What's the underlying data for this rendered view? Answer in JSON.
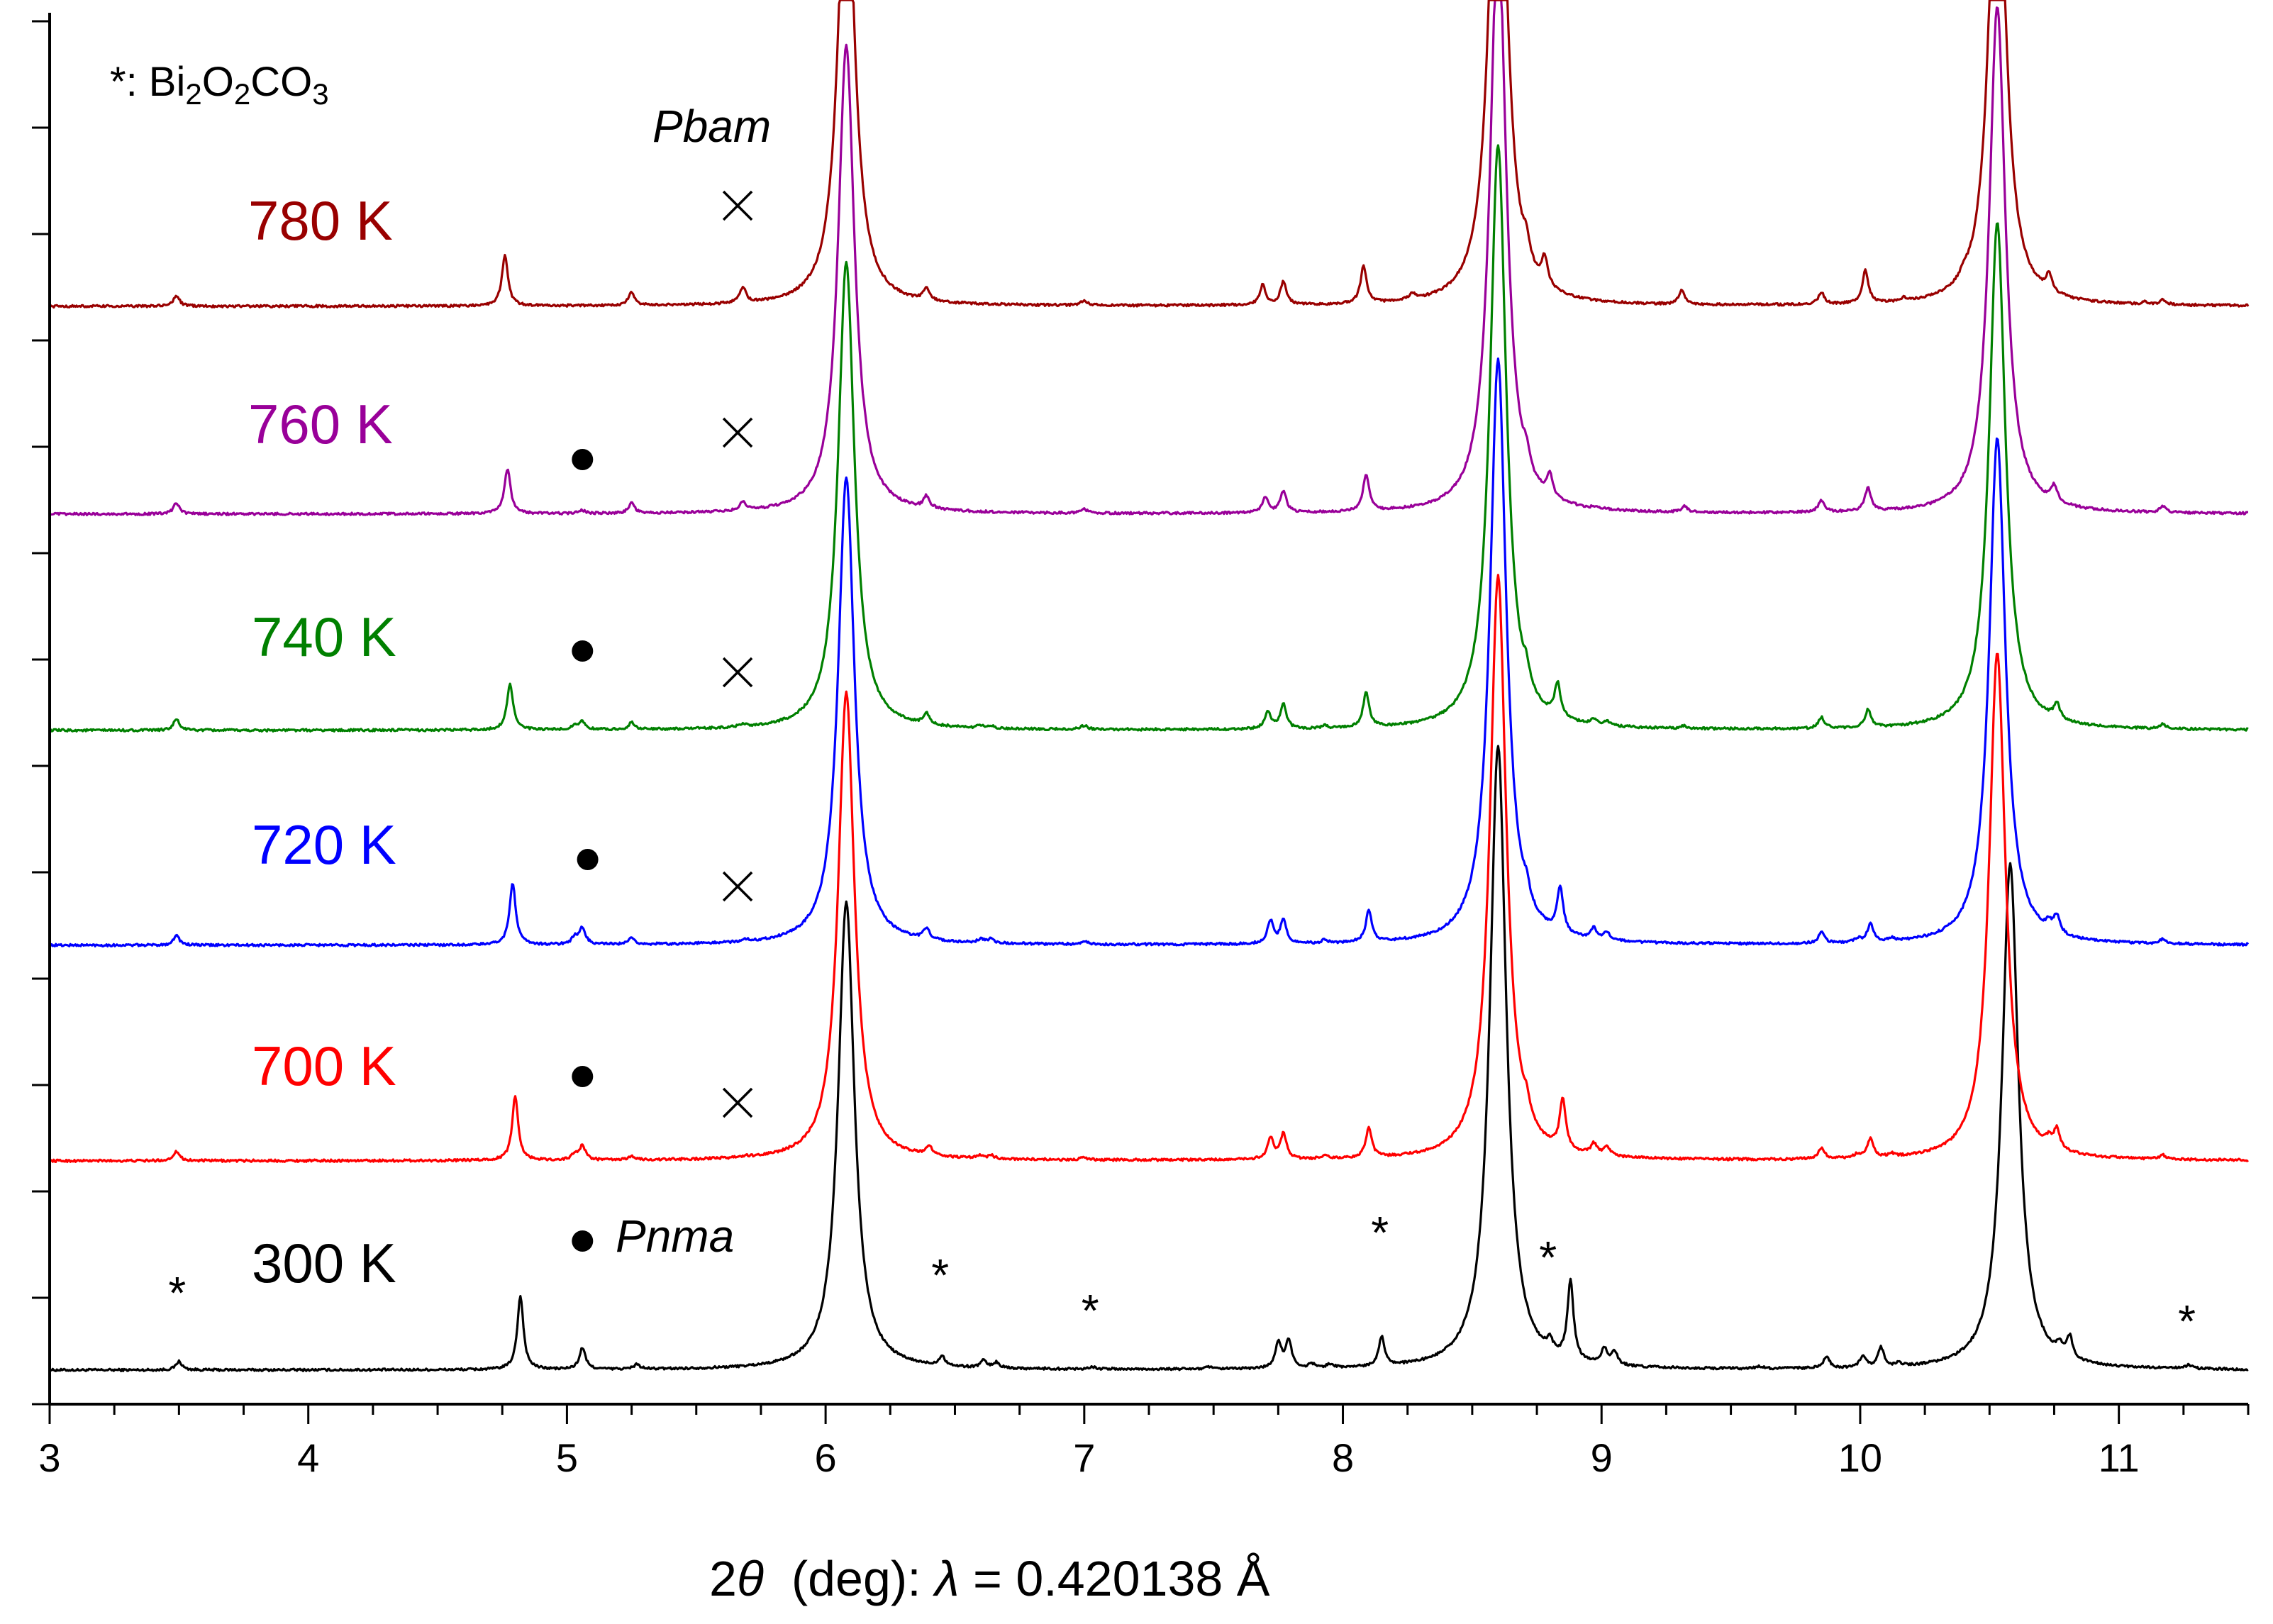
{
  "chart_data": {
    "type": "line",
    "xlabel": "(deg): ",
    "xlabel_parts": {
      "theta_prefix": "2",
      "theta_symbol": "θ",
      "deg_text": "  (deg): ",
      "lambda_symbol": "λ",
      "lambda_value": " = 0.420138 Å"
    },
    "ylabel": "",
    "xlim": [
      3,
      11.5
    ],
    "x_ticks": [
      "3",
      "4",
      "5",
      "6",
      "7",
      "8",
      "9",
      "10",
      "11"
    ],
    "legend": {
      "marker": "*",
      "text_prefix": ": Bi",
      "sub1": "2",
      "mid1": "O",
      "sub2": "2",
      "mid2": "CO",
      "sub3": "3"
    },
    "phase_labels": {
      "pbam": "Pbam",
      "pnma": "Pnma"
    },
    "series": [
      {
        "name": "300 K",
        "color": "#000000",
        "peaks": [
          [
            3.5,
            0.22
          ],
          [
            4.82,
            1.9
          ],
          [
            5.06,
            0.55
          ],
          [
            5.27,
            0.12
          ],
          [
            6.08,
            12
          ],
          [
            6.45,
            0.25
          ],
          [
            6.61,
            0.18
          ],
          [
            6.66,
            0.14
          ],
          [
            7.03,
            0.06
          ],
          [
            7.48,
            0.05
          ],
          [
            7.75,
            0.65
          ],
          [
            7.79,
            0.72
          ],
          [
            7.88,
            0.1
          ],
          [
            7.95,
            0.1
          ],
          [
            8.15,
            0.75
          ],
          [
            8.6,
            16
          ],
          [
            8.8,
            0.28
          ],
          [
            8.88,
            2.0
          ],
          [
            9.01,
            0.4
          ],
          [
            9.05,
            0.35
          ],
          [
            9.61,
            0.06
          ],
          [
            9.87,
            0.3
          ],
          [
            10.01,
            0.28
          ],
          [
            10.08,
            0.5
          ],
          [
            10.15,
            0.08
          ],
          [
            10.58,
            13
          ],
          [
            10.77,
            0.25
          ],
          [
            10.81,
            0.55
          ],
          [
            11.27,
            0.1
          ]
        ]
      },
      {
        "name": "700 K",
        "color": "#ff0000",
        "peaks": [
          [
            3.49,
            0.25
          ],
          [
            4.8,
            1.65
          ],
          [
            5.03,
            0.15
          ],
          [
            5.06,
            0.36
          ],
          [
            5.25,
            0.1
          ],
          [
            5.69,
            0.03
          ],
          [
            6.08,
            12
          ],
          [
            6.4,
            0.25
          ],
          [
            6.6,
            0.08
          ],
          [
            6.64,
            0.08
          ],
          [
            7.0,
            0.06
          ],
          [
            7.72,
            0.55
          ],
          [
            7.77,
            0.65
          ],
          [
            7.93,
            0.08
          ],
          [
            8.1,
            0.75
          ],
          [
            8.6,
            15
          ],
          [
            8.71,
            0.4
          ],
          [
            8.85,
            1.3
          ],
          [
            8.97,
            0.28
          ],
          [
            9.02,
            0.25
          ],
          [
            9.85,
            0.28
          ],
          [
            9.99,
            0.1
          ],
          [
            10.04,
            0.5
          ],
          [
            10.12,
            0.08
          ],
          [
            10.53,
            13
          ],
          [
            10.73,
            0.2
          ],
          [
            10.76,
            0.5
          ],
          [
            11.17,
            0.1
          ]
        ]
      },
      {
        "name": "720 K",
        "color": "#0000ff",
        "peaks": [
          [
            3.49,
            0.25
          ],
          [
            4.79,
            1.6
          ],
          [
            5.03,
            0.18
          ],
          [
            5.06,
            0.42
          ],
          [
            5.25,
            0.15
          ],
          [
            5.69,
            0.05
          ],
          [
            6.08,
            12
          ],
          [
            6.39,
            0.28
          ],
          [
            6.6,
            0.1
          ],
          [
            6.64,
            0.1
          ],
          [
            7.0,
            0.08
          ],
          [
            7.72,
            0.58
          ],
          [
            7.77,
            0.62
          ],
          [
            7.93,
            0.08
          ],
          [
            8.1,
            0.8
          ],
          [
            8.6,
            15
          ],
          [
            8.71,
            0.35
          ],
          [
            8.84,
            1.15
          ],
          [
            8.97,
            0.28
          ],
          [
            9.02,
            0.22
          ],
          [
            9.85,
            0.28
          ],
          [
            9.99,
            0.1
          ],
          [
            10.04,
            0.48
          ],
          [
            10.12,
            0.08
          ],
          [
            10.53,
            13
          ],
          [
            10.73,
            0.2
          ],
          [
            10.76,
            0.45
          ],
          [
            11.17,
            0.12
          ]
        ]
      },
      {
        "name": "740 K",
        "color": "#008000",
        "peaks": [
          [
            3.49,
            0.28
          ],
          [
            4.78,
            1.2
          ],
          [
            5.03,
            0.12
          ],
          [
            5.06,
            0.2
          ],
          [
            5.25,
            0.18
          ],
          [
            5.68,
            0.08
          ],
          [
            6.08,
            12
          ],
          [
            6.39,
            0.28
          ],
          [
            6.6,
            0.06
          ],
          [
            6.64,
            0.06
          ],
          [
            7.0,
            0.1
          ],
          [
            7.71,
            0.45
          ],
          [
            7.77,
            0.62
          ],
          [
            7.93,
            0.06
          ],
          [
            8.09,
            0.9
          ],
          [
            8.6,
            15
          ],
          [
            8.71,
            0.4
          ],
          [
            8.83,
            0.85
          ],
          [
            8.97,
            0.12
          ],
          [
            9.02,
            0.1
          ],
          [
            9.32,
            0.06
          ],
          [
            9.85,
            0.28
          ],
          [
            10.03,
            0.45
          ],
          [
            10.53,
            13
          ],
          [
            10.76,
            0.4
          ],
          [
            11.17,
            0.12
          ]
        ]
      },
      {
        "name": "760 K",
        "color": "#990099",
        "peaks": [
          [
            3.49,
            0.28
          ],
          [
            4.77,
            1.15
          ],
          [
            5.06,
            0.08
          ],
          [
            5.25,
            0.25
          ],
          [
            5.68,
            0.22
          ],
          [
            6.08,
            12
          ],
          [
            6.39,
            0.3
          ],
          [
            7.0,
            0.1
          ],
          [
            7.7,
            0.4
          ],
          [
            7.77,
            0.55
          ],
          [
            8.09,
            0.95
          ],
          [
            8.6,
            15
          ],
          [
            8.71,
            0.4
          ],
          [
            8.8,
            0.55
          ],
          [
            8.98,
            0.05
          ],
          [
            9.32,
            0.15
          ],
          [
            9.85,
            0.3
          ],
          [
            10.03,
            0.6
          ],
          [
            10.53,
            13
          ],
          [
            10.75,
            0.4
          ],
          [
            11.17,
            0.15
          ]
        ]
      },
      {
        "name": "780 K",
        "color": "#990000",
        "peaks": [
          [
            3.49,
            0.28
          ],
          [
            4.76,
            1.3
          ],
          [
            5.25,
            0.35
          ],
          [
            5.68,
            0.4
          ],
          [
            6.08,
            12
          ],
          [
            6.39,
            0.32
          ],
          [
            7.0,
            0.12
          ],
          [
            7.69,
            0.5
          ],
          [
            7.77,
            0.6
          ],
          [
            8.08,
            0.95
          ],
          [
            8.27,
            0.15
          ],
          [
            8.6,
            15
          ],
          [
            8.71,
            0.5
          ],
          [
            8.78,
            0.7
          ],
          [
            9.31,
            0.35
          ],
          [
            9.85,
            0.3
          ],
          [
            10.02,
            0.85
          ],
          [
            10.17,
            0.08
          ],
          [
            10.4,
            0.15
          ],
          [
            10.53,
            13
          ],
          [
            10.73,
            0.45
          ],
          [
            11.1,
            0.05
          ],
          [
            11.17,
            0.12
          ]
        ]
      }
    ],
    "markers": {
      "asterisks": [
        3.5,
        6.45,
        7.03,
        8.15,
        8.8,
        11.27
      ],
      "dots": [
        5.06,
        5.06,
        5.08,
        5.06,
        5.06
      ],
      "crosses": [
        5.66,
        5.66,
        5.66,
        5.66,
        5.66
      ]
    }
  }
}
